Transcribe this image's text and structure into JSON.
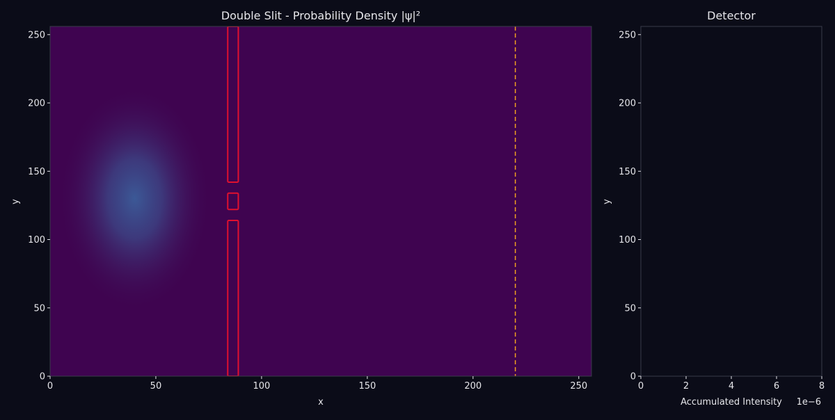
{
  "chart_data": [
    {
      "type": "heatmap",
      "title": "Double Slit - Probability Density |ψ|²",
      "xlabel": "x",
      "ylabel": "y",
      "xlim": [
        0,
        256
      ],
      "ylim": [
        0,
        256
      ],
      "xticks": [
        0,
        50,
        100,
        150,
        200,
        250
      ],
      "yticks": [
        0,
        50,
        100,
        150,
        200,
        250
      ],
      "colormap": {
        "background": "#3f0450",
        "peak": "#3b5d9a"
      },
      "wave_packet": {
        "center_x": 40,
        "center_y": 130,
        "sigma_x": 14,
        "sigma_y": 32
      },
      "barrier": {
        "x_start": 84,
        "x_end": 89,
        "segments": [
          [
            0,
            114
          ],
          [
            122,
            134
          ],
          [
            142,
            256
          ]
        ],
        "color": "#e0102e"
      },
      "detector_line": {
        "x": 220,
        "color": "#f0a020",
        "style": "dashed"
      }
    },
    {
      "type": "line",
      "title": "Detector",
      "xlabel": "Accumulated Intensity",
      "ylabel": "y",
      "xlim": [
        0,
        8
      ],
      "ylim": [
        0,
        256
      ],
      "xticks": [
        0,
        2,
        4,
        6,
        8
      ],
      "yticks": [
        0,
        50,
        100,
        150,
        200,
        250
      ],
      "x_offset_label": "1e−6",
      "series": []
    }
  ],
  "colors": {
    "figure_bg": "#0b0c18",
    "panel_bg": "#0b0c18",
    "axis_spine": "#3a3b4a",
    "text": "#e6e6ea"
  }
}
